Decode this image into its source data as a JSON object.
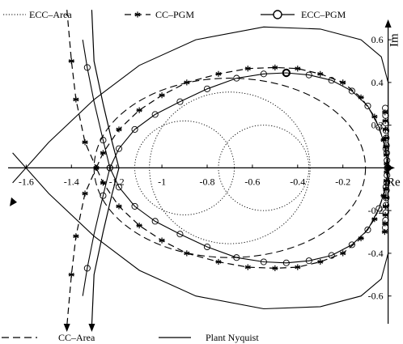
{
  "chart_data": {
    "type": "line",
    "xlabel": "Re",
    "ylabel": "Im",
    "xlim": [
      -1.68,
      0.03
    ],
    "ylim": [
      -0.73,
      0.68
    ],
    "x_ticks": [
      "-1.6",
      "-1.4",
      "-1.2",
      "-1",
      "-0.8",
      "-0.6",
      "-0.4",
      "-0.2",
      "0"
    ],
    "y_ticks": [
      "0.6",
      "0.4",
      "0.2",
      "0",
      "-0.2",
      "-0.4",
      "-0.6"
    ],
    "grid": false,
    "legend": [
      "ECC–Area",
      "CC–PGM",
      "ECC–PGM",
      "CC–Area",
      "Plant Nyquist"
    ],
    "series": [
      {
        "name": "ECC–Area",
        "style": "dotted",
        "shapes": [
          {
            "shape": "circle",
            "center": [
              -0.9,
              0.0
            ],
            "radius": 0.22
          },
          {
            "shape": "circle",
            "center": [
              -0.55,
              0.0
            ],
            "radius": 0.2
          },
          {
            "shape": "circle",
            "center": [
              -0.7,
              0.0
            ],
            "radius": 0.355
          }
        ]
      },
      {
        "name": "CC–PGM",
        "style": "dash-star",
        "markers": "star",
        "points": [
          [
            -1.42,
            0.74
          ],
          [
            -1.4,
            0.5
          ],
          [
            -1.38,
            0.32
          ],
          [
            -1.34,
            0.12
          ],
          [
            -1.29,
            0.0
          ],
          [
            -1.34,
            -0.12
          ],
          [
            -1.38,
            -0.32
          ],
          [
            -1.4,
            -0.5
          ],
          [
            -1.42,
            -0.74
          ]
        ],
        "loop": [
          [
            -1.29,
            0.0
          ],
          [
            -1.26,
            0.07
          ],
          [
            -1.19,
            0.18
          ],
          [
            -1.1,
            0.27
          ],
          [
            -1.0,
            0.34
          ],
          [
            -0.89,
            0.4
          ],
          [
            -0.75,
            0.44
          ],
          [
            -0.62,
            0.465
          ],
          [
            -0.5,
            0.47
          ],
          [
            -0.4,
            0.465
          ],
          [
            -0.3,
            0.44
          ],
          [
            -0.2,
            0.4
          ],
          [
            -0.12,
            0.33
          ],
          [
            -0.06,
            0.24
          ],
          [
            -0.02,
            0.13
          ],
          [
            0.0,
            0.0
          ],
          [
            -0.02,
            -0.13
          ],
          [
            -0.06,
            -0.24
          ],
          [
            -0.12,
            -0.33
          ],
          [
            -0.2,
            -0.4
          ],
          [
            -0.3,
            -0.44
          ],
          [
            -0.4,
            -0.465
          ],
          [
            -0.5,
            -0.47
          ],
          [
            -0.62,
            -0.465
          ],
          [
            -0.75,
            -0.44
          ],
          [
            -0.89,
            -0.4
          ],
          [
            -1.0,
            -0.34
          ],
          [
            -1.1,
            -0.27
          ],
          [
            -1.19,
            -0.18
          ],
          [
            -1.26,
            -0.07
          ],
          [
            -1.29,
            0.0
          ]
        ]
      },
      {
        "name": "ECC–PGM",
        "style": "solid-circle",
        "markers": "circle",
        "points": [
          [
            -1.35,
            0.6
          ],
          [
            -1.33,
            0.47
          ],
          [
            -1.3,
            0.31
          ],
          [
            -1.26,
            0.13
          ],
          [
            -1.23,
            0.0
          ],
          [
            -1.26,
            -0.13
          ],
          [
            -1.3,
            -0.31
          ],
          [
            -1.33,
            -0.47
          ],
          [
            -1.35,
            -0.6
          ]
        ],
        "loop": [
          [
            -1.23,
            0.0
          ],
          [
            -1.19,
            0.09
          ],
          [
            -1.12,
            0.18
          ],
          [
            -1.03,
            0.25
          ],
          [
            -0.92,
            0.31
          ],
          [
            -0.8,
            0.37
          ],
          [
            -0.67,
            0.42
          ],
          [
            -0.55,
            0.44
          ],
          [
            -0.45,
            0.445
          ],
          [
            -0.35,
            0.435
          ],
          [
            -0.25,
            0.41
          ],
          [
            -0.16,
            0.36
          ],
          [
            -0.09,
            0.29
          ],
          [
            -0.04,
            0.19
          ],
          [
            -0.01,
            0.09
          ],
          [
            0.0,
            0.0
          ],
          [
            -0.01,
            -0.09
          ],
          [
            -0.04,
            -0.19
          ],
          [
            -0.09,
            -0.29
          ],
          [
            -0.16,
            -0.36
          ],
          [
            -0.25,
            -0.41
          ],
          [
            -0.35,
            -0.435
          ],
          [
            -0.45,
            -0.445
          ],
          [
            -0.55,
            -0.44
          ],
          [
            -0.67,
            -0.42
          ],
          [
            -0.8,
            -0.37
          ],
          [
            -0.92,
            -0.31
          ],
          [
            -1.03,
            -0.25
          ],
          [
            -1.12,
            -0.18
          ],
          [
            -1.19,
            -0.09
          ],
          [
            -1.23,
            0.0
          ]
        ]
      },
      {
        "name": "CC–Area",
        "style": "dashed",
        "shapes": [
          {
            "shape": "ellipse",
            "center": [
              -0.7,
              0.0
            ],
            "rx": 0.6,
            "ry": 0.42
          }
        ]
      },
      {
        "name": "Plant Nyquist",
        "style": "solid",
        "points": [
          [
            -1.31,
            0.74
          ],
          [
            -1.3,
            0.5
          ],
          [
            -1.26,
            0.3
          ],
          [
            -1.22,
            0.12
          ],
          [
            -1.19,
            0.0
          ],
          [
            -1.22,
            -0.12
          ],
          [
            -1.26,
            -0.3
          ],
          [
            -1.3,
            -0.5
          ],
          [
            -1.31,
            -0.74
          ]
        ],
        "big_loop": [
          [
            -1.66,
            -0.07
          ],
          [
            -1.5,
            0.12
          ],
          [
            -1.3,
            0.32
          ],
          [
            -1.1,
            0.48
          ],
          [
            -0.85,
            0.6
          ],
          [
            -0.55,
            0.66
          ],
          [
            -0.3,
            0.65
          ],
          [
            -0.12,
            0.6
          ],
          [
            -0.03,
            0.52
          ],
          [
            0.0,
            0.4
          ]
        ]
      }
    ]
  }
}
